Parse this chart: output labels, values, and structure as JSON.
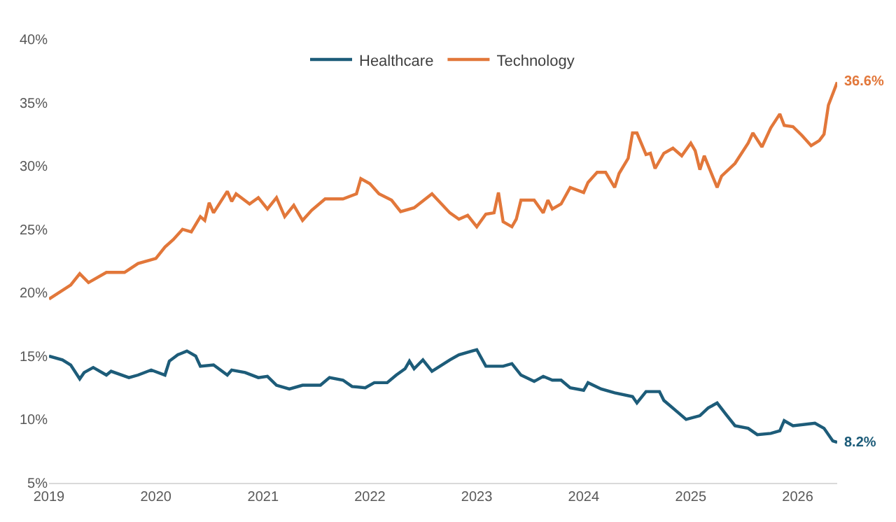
{
  "chart_data": {
    "type": "line",
    "series": [
      {
        "name": "Healthcare",
        "color": "#1d5c79",
        "x": [
          "2019-01-01",
          "2019-02-16",
          "2019-03-16",
          "2019-04-16",
          "2019-05-01",
          "2019-06-01",
          "2019-07-16",
          "2019-08-01",
          "2019-10-01",
          "2019-11-01",
          "2019-12-16",
          "2020-02-01",
          "2020-02-16",
          "2020-03-16",
          "2020-04-16",
          "2020-05-16",
          "2020-06-01",
          "2020-07-16",
          "2020-09-01",
          "2020-09-16",
          "2020-11-01",
          "2020-12-16",
          "2021-01-16",
          "2021-02-16",
          "2021-04-01",
          "2021-05-16",
          "2021-07-16",
          "2021-08-16",
          "2021-10-01",
          "2021-11-01",
          "2021-12-16",
          "2022-01-16",
          "2022-03-01",
          "2022-04-01",
          "2022-05-01",
          "2022-05-16",
          "2022-06-01",
          "2022-07-01",
          "2022-08-01",
          "2022-10-01",
          "2022-11-01",
          "2022-12-16",
          "2023-01-01",
          "2023-02-01",
          "2023-04-01",
          "2023-05-01",
          "2023-06-01",
          "2023-07-16",
          "2023-08-16",
          "2023-09-16",
          "2023-10-16",
          "2023-11-16",
          "2024-01-01",
          "2024-01-16",
          "2024-03-01",
          "2024-04-16",
          "2024-06-16",
          "2024-07-01",
          "2024-08-01",
          "2024-09-16",
          "2024-10-01",
          "2024-11-16",
          "2024-12-16",
          "2025-02-01",
          "2025-03-01",
          "2025-04-01",
          "2025-05-01",
          "2025-06-01",
          "2025-07-16",
          "2025-08-16",
          "2025-10-01",
          "2025-11-01",
          "2025-11-16",
          "2025-12-16",
          "2026-03-01",
          "2026-04-01",
          "2026-05-01",
          "2026-05-16"
        ],
        "values": [
          15.0,
          14.7,
          14.3,
          13.2,
          13.7,
          14.1,
          13.5,
          13.8,
          13.3,
          13.5,
          13.9,
          13.5,
          14.6,
          15.1,
          15.4,
          15.0,
          14.2,
          14.3,
          13.5,
          13.9,
          13.7,
          13.3,
          13.4,
          12.7,
          12.4,
          12.7,
          12.7,
          13.3,
          13.1,
          12.6,
          12.5,
          12.9,
          12.9,
          13.5,
          14.0,
          14.6,
          14.0,
          14.7,
          13.8,
          14.7,
          15.1,
          15.4,
          15.5,
          14.2,
          14.2,
          14.4,
          13.5,
          13.0,
          13.4,
          13.1,
          13.1,
          12.5,
          12.3,
          12.9,
          12.4,
          12.1,
          11.8,
          11.3,
          12.2,
          12.2,
          11.5,
          10.6,
          10.0,
          10.3,
          10.9,
          11.3,
          10.4,
          9.5,
          9.3,
          8.8,
          8.9,
          9.1,
          9.9,
          9.5,
          9.7,
          9.3,
          8.3,
          8.2
        ]
      },
      {
        "name": "Technology",
        "color": "#e2773a",
        "x": [
          "2019-01-01",
          "2019-03-16",
          "2019-04-16",
          "2019-05-16",
          "2019-07-16",
          "2019-09-16",
          "2019-11-01",
          "2020-01-01",
          "2020-02-01",
          "2020-03-01",
          "2020-04-01",
          "2020-05-01",
          "2020-06-01",
          "2020-06-16",
          "2020-07-01",
          "2020-07-16",
          "2020-09-01",
          "2020-09-16",
          "2020-10-01",
          "2020-11-16",
          "2020-12-16",
          "2021-01-16",
          "2021-02-16",
          "2021-03-16",
          "2021-04-16",
          "2021-05-16",
          "2021-06-16",
          "2021-08-01",
          "2021-10-01",
          "2021-11-16",
          "2021-12-01",
          "2022-01-01",
          "2022-02-01",
          "2022-03-16",
          "2022-04-16",
          "2022-06-01",
          "2022-08-01",
          "2022-10-01",
          "2022-11-01",
          "2022-12-01",
          "2023-01-01",
          "2023-02-01",
          "2023-03-01",
          "2023-03-16",
          "2023-04-01",
          "2023-05-01",
          "2023-05-16",
          "2023-06-01",
          "2023-07-16",
          "2023-08-16",
          "2023-09-01",
          "2023-09-16",
          "2023-10-16",
          "2023-11-16",
          "2024-01-01",
          "2024-01-16",
          "2024-02-16",
          "2024-03-16",
          "2024-04-16",
          "2024-05-01",
          "2024-06-01",
          "2024-06-16",
          "2024-07-01",
          "2024-08-01",
          "2024-08-16",
          "2024-09-01",
          "2024-10-01",
          "2024-11-01",
          "2024-12-01",
          "2025-01-01",
          "2025-01-16",
          "2025-02-01",
          "2025-02-16",
          "2025-03-16",
          "2025-04-01",
          "2025-04-16",
          "2025-06-01",
          "2025-07-16",
          "2025-08-01",
          "2025-09-01",
          "2025-10-01",
          "2025-11-01",
          "2025-11-16",
          "2025-12-16",
          "2026-01-16",
          "2026-02-16",
          "2026-03-16",
          "2026-04-01",
          "2026-04-16",
          "2026-05-16"
        ],
        "values": [
          19.5,
          20.6,
          21.5,
          20.8,
          21.6,
          21.6,
          22.3,
          22.7,
          23.6,
          24.2,
          25.0,
          24.8,
          26.0,
          25.7,
          27.1,
          26.3,
          28.0,
          27.2,
          27.8,
          27.0,
          27.5,
          26.6,
          27.5,
          26.0,
          26.9,
          25.7,
          26.5,
          27.4,
          27.4,
          27.8,
          29.0,
          28.6,
          27.8,
          27.3,
          26.4,
          26.7,
          27.8,
          26.3,
          25.8,
          26.1,
          25.2,
          26.2,
          26.3,
          27.9,
          25.6,
          25.2,
          25.8,
          27.3,
          27.3,
          26.3,
          27.3,
          26.6,
          27.0,
          28.3,
          27.9,
          28.7,
          29.5,
          29.5,
          28.3,
          29.4,
          30.6,
          32.6,
          32.6,
          30.9,
          31.0,
          29.8,
          31.0,
          31.4,
          30.8,
          31.8,
          31.2,
          29.7,
          30.8,
          29.2,
          28.3,
          29.2,
          30.2,
          31.8,
          32.6,
          31.5,
          33.0,
          34.1,
          33.2,
          33.1,
          32.4,
          31.6,
          32.0,
          32.5,
          34.8,
          36.6
        ]
      }
    ],
    "xlim": [
      "2019-01-01",
      "2026-05-16"
    ],
    "xticks": [
      {
        "value": "2019-01-01",
        "label": "2019"
      },
      {
        "value": "2020-01-01",
        "label": "2020"
      },
      {
        "value": "2021-01-01",
        "label": "2021"
      },
      {
        "value": "2022-01-01",
        "label": "2022"
      },
      {
        "value": "2023-01-01",
        "label": "2023"
      },
      {
        "value": "2024-01-01",
        "label": "2024"
      },
      {
        "value": "2025-01-01",
        "label": "2025"
      },
      {
        "value": "2026-01-01",
        "label": "2026"
      }
    ],
    "ylim": [
      5,
      40
    ],
    "yticks": [
      {
        "value": 5,
        "label": "5%"
      },
      {
        "value": 10,
        "label": "10%"
      },
      {
        "value": 15,
        "label": "15%"
      },
      {
        "value": 20,
        "label": "20%"
      },
      {
        "value": 25,
        "label": "25%"
      },
      {
        "value": 30,
        "label": "30%"
      },
      {
        "value": 35,
        "label": "35%"
      },
      {
        "value": 40,
        "label": "40%"
      }
    ],
    "annotations": [
      {
        "text": "36.6%",
        "x": "2026-05-16",
        "y": 36.6
      },
      {
        "text": "8.2%",
        "x": "2026-05-16",
        "y": 8.2
      }
    ],
    "grid": false,
    "legend": "top",
    "marker": "none",
    "line_style": "solid"
  }
}
